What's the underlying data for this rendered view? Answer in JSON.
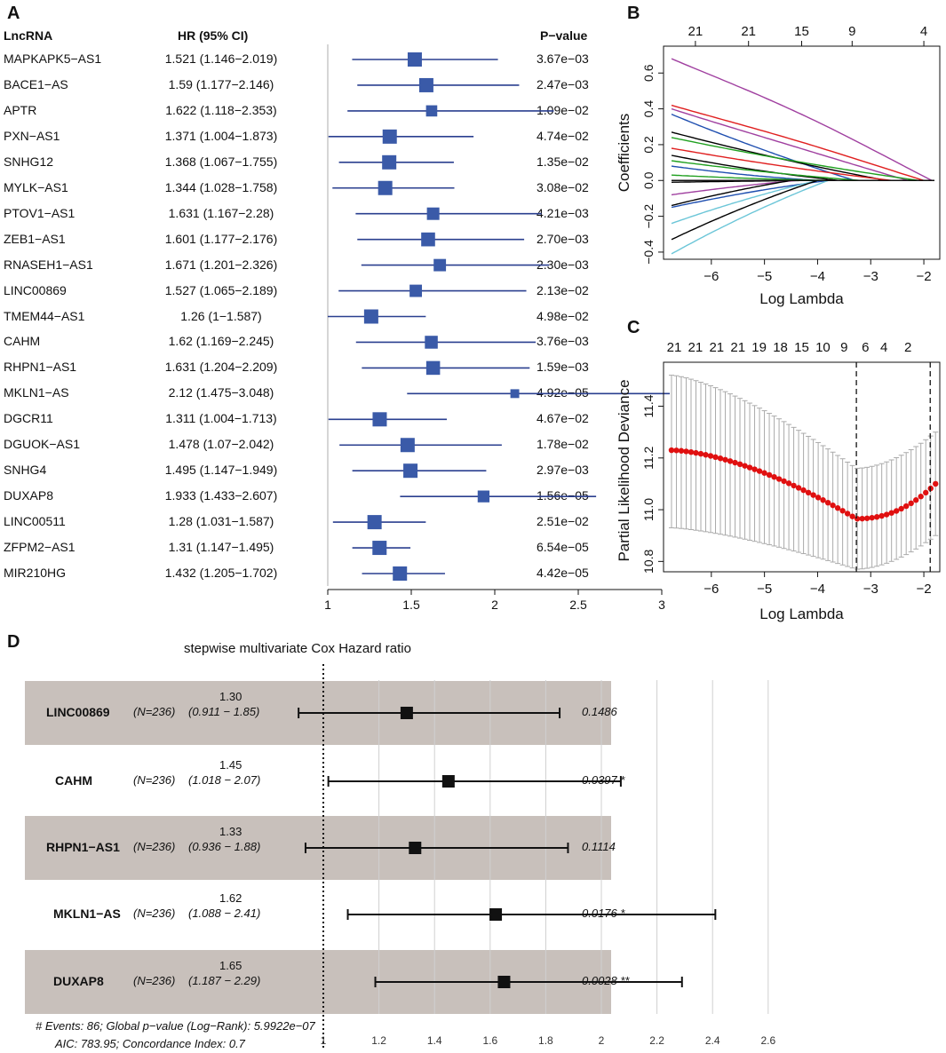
{
  "panels": {
    "a": "A",
    "b": "B",
    "c": "C",
    "d": "D"
  },
  "forest": {
    "headers": {
      "lnc": "LncRNA",
      "hr": "HR (95% CI)",
      "p": "P−value"
    },
    "axis_ticks": [
      1,
      1.5,
      2,
      2.5,
      3
    ],
    "axis_tick_labels": [
      "1",
      "1.5",
      "2",
      "2.5",
      "3"
    ],
    "rows": [
      {
        "name": "MAPKAPK5−AS1",
        "hr_text": "1.521 (1.146−2.019)",
        "p": "3.67e−03",
        "hr": 1.521,
        "lo": 1.146,
        "hi": 2.019
      },
      {
        "name": "BACE1−AS",
        "hr_text": "1.59 (1.177−2.146)",
        "p": "2.47e−03",
        "hr": 1.59,
        "lo": 1.177,
        "hi": 2.146
      },
      {
        "name": "APTR",
        "hr_text": "1.622 (1.118−2.353)",
        "p": "1.09e−02",
        "hr": 1.622,
        "lo": 1.118,
        "hi": 2.353
      },
      {
        "name": "PXN−AS1",
        "hr_text": "1.371 (1.004−1.873)",
        "p": "4.74e−02",
        "hr": 1.371,
        "lo": 1.004,
        "hi": 1.873
      },
      {
        "name": "SNHG12",
        "hr_text": "1.368 (1.067−1.755)",
        "p": "1.35e−02",
        "hr": 1.368,
        "lo": 1.067,
        "hi": 1.755
      },
      {
        "name": "MYLK−AS1",
        "hr_text": "1.344 (1.028−1.758)",
        "p": "3.08e−02",
        "hr": 1.344,
        "lo": 1.028,
        "hi": 1.758
      },
      {
        "name": "PTOV1−AS1",
        "hr_text": "1.631 (1.167−2.28)",
        "p": "4.21e−03",
        "hr": 1.631,
        "lo": 1.167,
        "hi": 2.28
      },
      {
        "name": "ZEB1−AS1",
        "hr_text": "1.601 (1.177−2.176)",
        "p": "2.70e−03",
        "hr": 1.601,
        "lo": 1.177,
        "hi": 2.176
      },
      {
        "name": "RNASEH1−AS1",
        "hr_text": "1.671 (1.201−2.326)",
        "p": "2.30e−03",
        "hr": 1.671,
        "lo": 1.201,
        "hi": 2.326
      },
      {
        "name": "LINC00869",
        "hr_text": "1.527 (1.065−2.189)",
        "p": "2.13e−02",
        "hr": 1.527,
        "lo": 1.065,
        "hi": 2.189
      },
      {
        "name": "TMEM44−AS1",
        "hr_text": "1.26 (1−1.587)",
        "p": "4.98e−02",
        "hr": 1.26,
        "lo": 1.0,
        "hi": 1.587
      },
      {
        "name": "CAHM",
        "hr_text": "1.62 (1.169−2.245)",
        "p": "3.76e−03",
        "hr": 1.62,
        "lo": 1.169,
        "hi": 2.245
      },
      {
        "name": "RHPN1−AS1",
        "hr_text": "1.631 (1.204−2.209)",
        "p": "1.59e−03",
        "hr": 1.631,
        "lo": 1.204,
        "hi": 2.209
      },
      {
        "name": "MKLN1−AS",
        "hr_text": "2.12 (1.475−3.048)",
        "p": "4.92e−05",
        "hr": 2.12,
        "lo": 1.475,
        "hi": 3.048
      },
      {
        "name": "DGCR11",
        "hr_text": "1.311 (1.004−1.713)",
        "p": "4.67e−02",
        "hr": 1.311,
        "lo": 1.004,
        "hi": 1.713
      },
      {
        "name": "DGUOK−AS1",
        "hr_text": "1.478 (1.07−2.042)",
        "p": "1.78e−02",
        "hr": 1.478,
        "lo": 1.07,
        "hi": 2.042
      },
      {
        "name": "SNHG4",
        "hr_text": "1.495 (1.147−1.949)",
        "p": "2.97e−03",
        "hr": 1.495,
        "lo": 1.147,
        "hi": 1.949
      },
      {
        "name": "DUXAP8",
        "hr_text": "1.933 (1.433−2.607)",
        "p": "1.56e−05",
        "hr": 1.933,
        "lo": 1.433,
        "hi": 2.607
      },
      {
        "name": "LINC00511",
        "hr_text": "1.28 (1.031−1.587)",
        "p": "2.51e−02",
        "hr": 1.28,
        "lo": 1.031,
        "hi": 1.587
      },
      {
        "name": "ZFPM2−AS1",
        "hr_text": "1.31 (1.147−1.495)",
        "p": "6.54e−05",
        "hr": 1.31,
        "lo": 1.147,
        "hi": 1.495
      },
      {
        "name": "MIR210HG",
        "hr_text": "1.432 (1.205−1.702)",
        "p": "4.42e−05",
        "hr": 1.432,
        "lo": 1.205,
        "hi": 1.702
      }
    ]
  },
  "lasso_coef": {
    "xlabel": "Log Lambda",
    "ylabel": "Coefficients",
    "x_ticks": [
      -6,
      -5,
      -4,
      -3,
      -2
    ],
    "x_tick_labels": [
      "−6",
      "−5",
      "−4",
      "−3",
      "−2"
    ],
    "y_ticks": [
      -0.4,
      -0.2,
      0.0,
      0.2,
      0.4,
      0.6
    ],
    "y_tick_labels": [
      "−0.4",
      "−0.2",
      "0.0",
      "0.2",
      "0.4",
      "0.6"
    ],
    "top_ticks": [
      -6.3,
      -5.3,
      -4.3,
      -3.35,
      -2.0
    ],
    "top_labels": [
      "21",
      "21",
      "15",
      "9",
      "4"
    ],
    "xlim": [
      -6.9,
      -1.7
    ],
    "ylim": [
      -0.44,
      0.75
    ],
    "paths": [
      {
        "color": "#a040a0",
        "v0": 0.68,
        "end": -1.85,
        "mid": 0.52
      },
      {
        "color": "#e02020",
        "v0": 0.42,
        "end": -2.0,
        "mid": 0.3
      },
      {
        "color": "#a040a0",
        "v0": 0.4,
        "end": -2.3,
        "mid": 0.25
      },
      {
        "color": "#1f4fb0",
        "v0": 0.37,
        "end": -3.3,
        "mid": 0.2
      },
      {
        "color": "#000000",
        "v0": 0.27,
        "end": -2.7,
        "mid": 0.14
      },
      {
        "color": "#20a020",
        "v0": 0.24,
        "end": -2.1,
        "mid": 0.12
      },
      {
        "color": "#e02020",
        "v0": 0.18,
        "end": -2.6,
        "mid": 0.09
      },
      {
        "color": "#000000",
        "v0": 0.14,
        "end": -3.6,
        "mid": 0.06
      },
      {
        "color": "#20a020",
        "v0": 0.11,
        "end": -3.2,
        "mid": 0.05
      },
      {
        "color": "#1f4fb0",
        "v0": 0.08,
        "end": -4.0,
        "mid": 0.03
      },
      {
        "color": "#20a020",
        "v0": 0.03,
        "end": -3.8,
        "mid": 0.01
      },
      {
        "color": "#000000",
        "v0": -0.01,
        "end": -4.2,
        "mid": -0.005
      },
      {
        "color": "#a040a0",
        "v0": -0.08,
        "end": -4.4,
        "mid": -0.04
      },
      {
        "color": "#1f4fb0",
        "v0": -0.15,
        "end": -3.8,
        "mid": -0.07
      },
      {
        "color": "#000000",
        "v0": -0.14,
        "end": -4.5,
        "mid": -0.07
      },
      {
        "color": "#6cc6d8",
        "v0": -0.24,
        "end": -4.0,
        "mid": -0.12
      },
      {
        "color": "#000000",
        "v0": -0.33,
        "end": -4.0,
        "mid": -0.17
      },
      {
        "color": "#6cc6d8",
        "v0": -0.41,
        "end": -3.8,
        "mid": -0.21
      }
    ]
  },
  "chart_data": {
    "type": "line",
    "title": "",
    "xlabel": "Log Lambda",
    "ylabel": "Partial Likelihood Deviance",
    "x_ticks": [
      -6,
      -5,
      -4,
      -3,
      -2
    ],
    "x_tick_labels": [
      "−6",
      "−5",
      "−4",
      "−3",
      "−2"
    ],
    "y_ticks": [
      10.8,
      11.0,
      11.2,
      11.4
    ],
    "y_tick_labels": [
      "10.8",
      "11.0",
      "11.2",
      "11.4"
    ],
    "top_labels": [
      "21",
      "21",
      "21",
      "21",
      "19",
      "18",
      "15",
      "10",
      "9",
      "6",
      "4",
      "2"
    ],
    "top_label_positions": [
      -6.7,
      -6.3,
      -5.9,
      -5.5,
      -5.1,
      -4.7,
      -4.3,
      -3.9,
      -3.5,
      -3.1,
      -2.75,
      -2.3
    ],
    "xlim": [
      -6.9,
      -1.7
    ],
    "ylim": [
      10.76,
      11.57
    ],
    "lambda_min": -3.27,
    "lambda_1se": -1.88,
    "x_start": -6.75,
    "x_end": -1.78,
    "n_points": 55,
    "y_start": 11.23,
    "y_min": 10.965,
    "y_end": 11.1,
    "err_lower_start": 10.93,
    "err_upper_start": 11.52,
    "err_lower_min": 10.77,
    "err_upper_min": 11.16
  },
  "cox": {
    "title": "stepwise multivariate Cox Hazard ratio",
    "footer1": "# Events: 86; Global p−value (Log−Rank): 5.9922e−07",
    "footer2": "AIC: 783.95; Concordance Index: 0.7",
    "axis_ticks": [
      1,
      1.2,
      1.4,
      1.6,
      1.8,
      2,
      2.2,
      2.4,
      2.6
    ],
    "axis_tick_labels": [
      "1",
      "1.2",
      "1.4",
      "1.6",
      "1.8",
      "2",
      "2.2",
      "2.4",
      "2.6"
    ],
    "rows": [
      {
        "name": "LINC00869",
        "n": "(N=236)",
        "hr_label": "1.30",
        "ci_label": "(0.911 − 1.85)",
        "p": "0.1486",
        "hr": 1.3,
        "lo": 0.911,
        "hi": 1.85,
        "shaded": true
      },
      {
        "name": "CAHM",
        "n": "(N=236)",
        "hr_label": "1.45",
        "ci_label": "(1.018 − 2.07)",
        "p": "0.0397 *",
        "hr": 1.45,
        "lo": 1.018,
        "hi": 2.07,
        "shaded": false
      },
      {
        "name": "RHPN1−AS1",
        "n": "(N=236)",
        "hr_label": "1.33",
        "ci_label": "(0.936 − 1.88)",
        "p": "0.1114",
        "hr": 1.33,
        "lo": 0.936,
        "hi": 1.88,
        "shaded": true
      },
      {
        "name": "MKLN1−AS",
        "n": "(N=236)",
        "hr_label": "1.62",
        "ci_label": "(1.088 − 2.41)",
        "p": "0.0176 *",
        "hr": 1.62,
        "lo": 1.088,
        "hi": 2.41,
        "shaded": false
      },
      {
        "name": "DUXAP8",
        "n": "(N=236)",
        "hr_label": "1.65",
        "ci_label": "(1.187 − 2.29)",
        "p": "0.0028 **",
        "hr": 1.65,
        "lo": 1.187,
        "hi": 2.29,
        "shaded": true
      }
    ]
  }
}
